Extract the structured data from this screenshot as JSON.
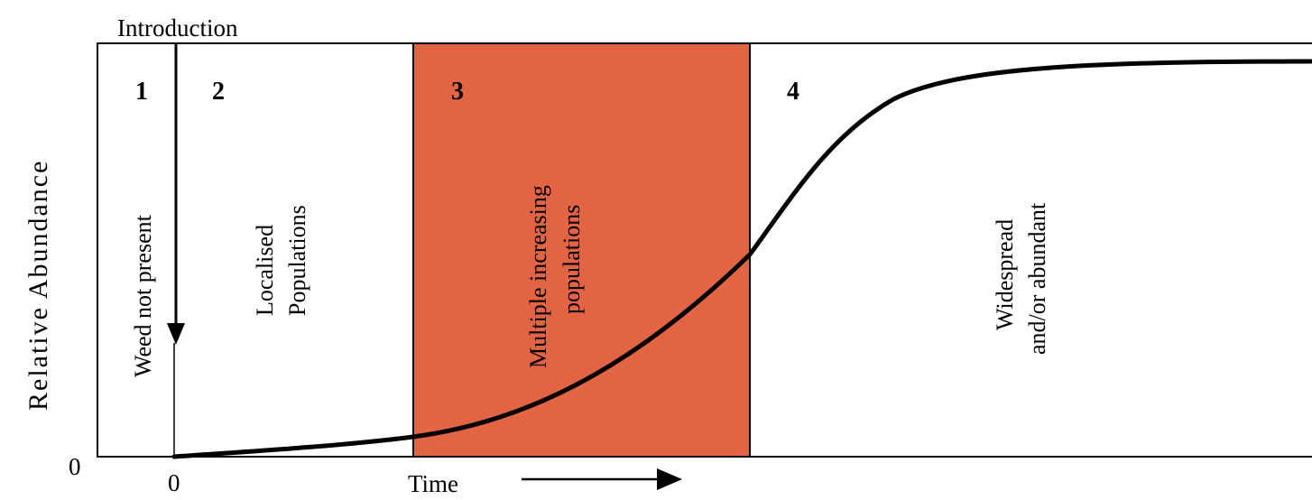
{
  "title": "",
  "introduction_label": "Introduction",
  "y_axis_label": "Relative Abundance",
  "y_origin_label": "0",
  "x_origin_label": "0",
  "x_axis_label": "Time",
  "highlight_color": "#e36442",
  "curve_color": "#000000",
  "phases": [
    {
      "number": "1",
      "lines": [
        "Weed not present"
      ]
    },
    {
      "number": "2",
      "lines": [
        "Localised",
        "Populations"
      ]
    },
    {
      "number": "3",
      "lines": [
        "Multiple increasing",
        "populations"
      ],
      "highlighted": true
    },
    {
      "number": "4",
      "lines": [
        "Widespread",
        "and/or abundant"
      ]
    }
  ]
}
